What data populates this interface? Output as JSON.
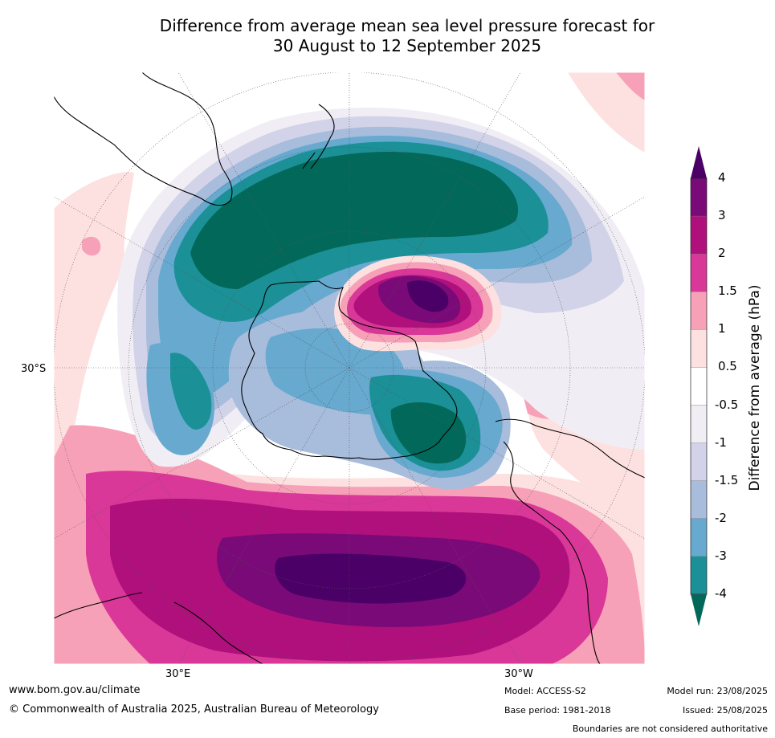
{
  "title": {
    "line1": "Difference from average mean sea level pressure forecast for",
    "line2": "30 August to 12 September 2025"
  },
  "map": {
    "lat_label": "30°S",
    "lon_label_left": "30°E",
    "lon_label_right": "30°W"
  },
  "colorbar": {
    "label": "Difference from average (hPa)",
    "levels": [
      "4",
      "3",
      "2",
      "1.5",
      "1",
      "0.5",
      "-0.5",
      "-1",
      "-1.5",
      "-2",
      "-3",
      "-4"
    ],
    "colors": [
      "#4a0066",
      "#7a0a78",
      "#b0107c",
      "#da3898",
      "#f7a1b8",
      "#fde0e0",
      "#ffffff",
      "#f0eef4",
      "#d2d3e8",
      "#a8bcdb",
      "#67a9cf",
      "#1b9097",
      "#02695a"
    ]
  },
  "footer": {
    "website": "www.bom.gov.au/climate",
    "copyright": "© Commonwealth of Australia 2025, Australian Bureau of Meteorology",
    "model": "Model: ACCESS-S2",
    "base_period": "Base period: 1981-2018",
    "model_run": "Model run: 23/08/2025",
    "issued": "Issued: 25/08/2025",
    "disclaimer": "Boundaries are not considered authoritative"
  }
}
